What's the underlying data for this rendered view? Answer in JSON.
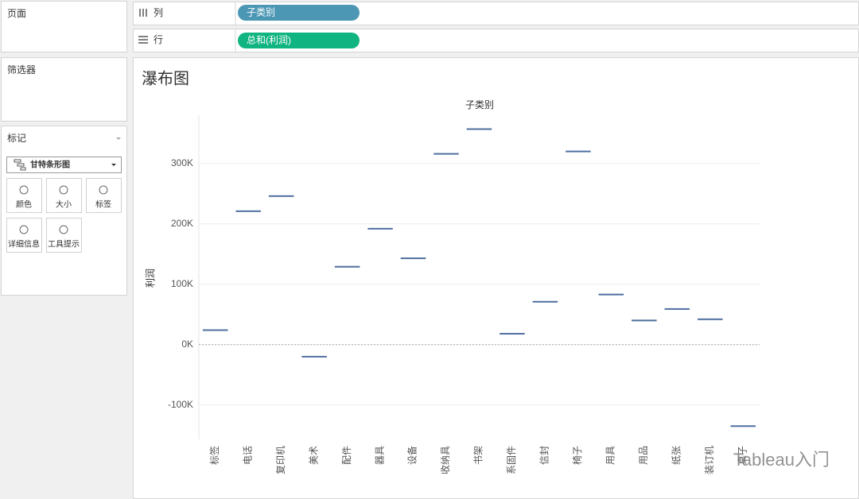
{
  "ui": {
    "pages": "页面",
    "filters": "筛选器",
    "marks": {
      "title": "标记",
      "mark_type": "甘特条形图",
      "cards": [
        "颜色",
        "大小",
        "标签",
        "详细信息",
        "工具提示"
      ]
    },
    "columns": {
      "label": "列",
      "pill": "子类别"
    },
    "rows": {
      "label": "行",
      "pill": "总和(利润)"
    },
    "watermark": "Tableau入门"
  },
  "chart_data": {
    "type": "gantt",
    "title": "瀑布图",
    "x_label": "子类别",
    "y_label": "利润",
    "categories": [
      "标签",
      "电话",
      "复印机",
      "美术",
      "配件",
      "器具",
      "设备",
      "收纳具",
      "书架",
      "系固件",
      "信封",
      "椅子",
      "用具",
      "用品",
      "纸张",
      "装订机",
      "桌子"
    ],
    "values": [
      24000,
      221000,
      246000,
      -20000,
      129000,
      192000,
      143000,
      316000,
      357000,
      18000,
      71000,
      320000,
      83000,
      40000,
      59000,
      42000,
      -135000
    ],
    "color": "#4e6f9f",
    "ylim": [
      -157000,
      380000
    ],
    "yticks": [
      {
        "value": -100000,
        "label": "-100K"
      },
      {
        "value": 0,
        "label": "0K"
      },
      {
        "value": 100000,
        "label": "100K"
      },
      {
        "value": 200000,
        "label": "200K"
      },
      {
        "value": 300000,
        "label": "300K"
      }
    ],
    "grid": true
  }
}
